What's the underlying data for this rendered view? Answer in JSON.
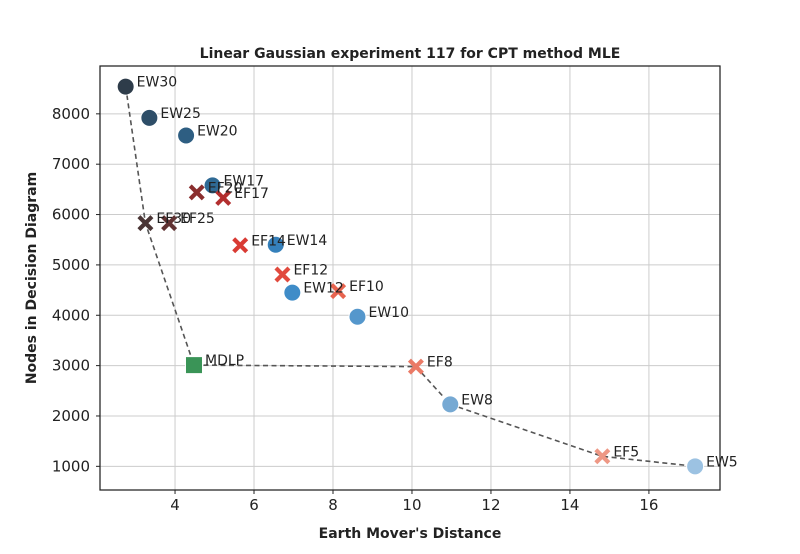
{
  "chart_data": {
    "type": "scatter",
    "title": "Linear Gaussian experiment 117 for CPT method MLE",
    "xlabel": "Earth Mover's Distance",
    "ylabel": "Nodes in Decision Diagram",
    "xlim": [
      2.1,
      17.8
    ],
    "ylim": [
      530,
      8950
    ],
    "xticks": [
      4,
      6,
      8,
      10,
      12,
      14,
      16
    ],
    "yticks": [
      1000,
      2000,
      3000,
      4000,
      5000,
      6000,
      7000,
      8000
    ],
    "grid": true,
    "legend": "none",
    "colors": {
      "MDLP": "#3a9457"
    },
    "points": [
      {
        "label": "EW30",
        "x": 2.75,
        "y": 8540,
        "marker": "circle",
        "color": "#2e3c4a"
      },
      {
        "label": "EW25",
        "x": 3.35,
        "y": 7920,
        "marker": "circle",
        "color": "#2e4e68"
      },
      {
        "label": "EW20",
        "x": 4.28,
        "y": 7570,
        "marker": "circle",
        "color": "#2e5e82"
      },
      {
        "label": "EW17",
        "x": 4.95,
        "y": 6580,
        "marker": "circle",
        "color": "#2f6a95"
      },
      {
        "label": "EF20",
        "x": 4.55,
        "y": 6440,
        "marker": "x",
        "color": "#8a2e2e"
      },
      {
        "label": "EF17",
        "x": 5.22,
        "y": 6330,
        "marker": "x",
        "color": "#b32f2f"
      },
      {
        "label": "EF30",
        "x": 3.25,
        "y": 5830,
        "marker": "x",
        "color": "#4a3535"
      },
      {
        "label": "EF25",
        "x": 3.85,
        "y": 5830,
        "marker": "x",
        "color": "#603232"
      },
      {
        "label": "EF14",
        "x": 5.65,
        "y": 5390,
        "marker": "x",
        "color": "#d93b34"
      },
      {
        "label": "EW14",
        "x": 6.55,
        "y": 5400,
        "marker": "circle",
        "color": "#3580bb"
      },
      {
        "label": "EF12",
        "x": 6.72,
        "y": 4810,
        "marker": "x",
        "color": "#e14a3e"
      },
      {
        "label": "EW12",
        "x": 6.97,
        "y": 4450,
        "marker": "circle",
        "color": "#3f8cc8"
      },
      {
        "label": "EF10",
        "x": 8.13,
        "y": 4480,
        "marker": "x",
        "color": "#e8644f"
      },
      {
        "label": "EW10",
        "x": 8.62,
        "y": 3970,
        "marker": "circle",
        "color": "#5597cc"
      },
      {
        "label": "MDLP",
        "x": 4.48,
        "y": 3010,
        "marker": "square",
        "color": "#3a9457"
      },
      {
        "label": "EF8",
        "x": 10.1,
        "y": 2980,
        "marker": "x",
        "color": "#ea7a66"
      },
      {
        "label": "EW8",
        "x": 10.97,
        "y": 2230,
        "marker": "circle",
        "color": "#76a9d3"
      },
      {
        "label": "EF5",
        "x": 14.82,
        "y": 1200,
        "marker": "x",
        "color": "#ee9885"
      },
      {
        "label": "EW5",
        "x": 17.17,
        "y": 1000,
        "marker": "circle",
        "color": "#9cc2e2"
      }
    ],
    "pareto_front": [
      {
        "x": 2.75,
        "y": 8540
      },
      {
        "x": 3.25,
        "y": 5830
      },
      {
        "x": 4.48,
        "y": 3010
      },
      {
        "x": 10.1,
        "y": 2980
      },
      {
        "x": 10.97,
        "y": 2230
      },
      {
        "x": 14.82,
        "y": 1200
      },
      {
        "x": 17.17,
        "y": 1000
      }
    ]
  }
}
